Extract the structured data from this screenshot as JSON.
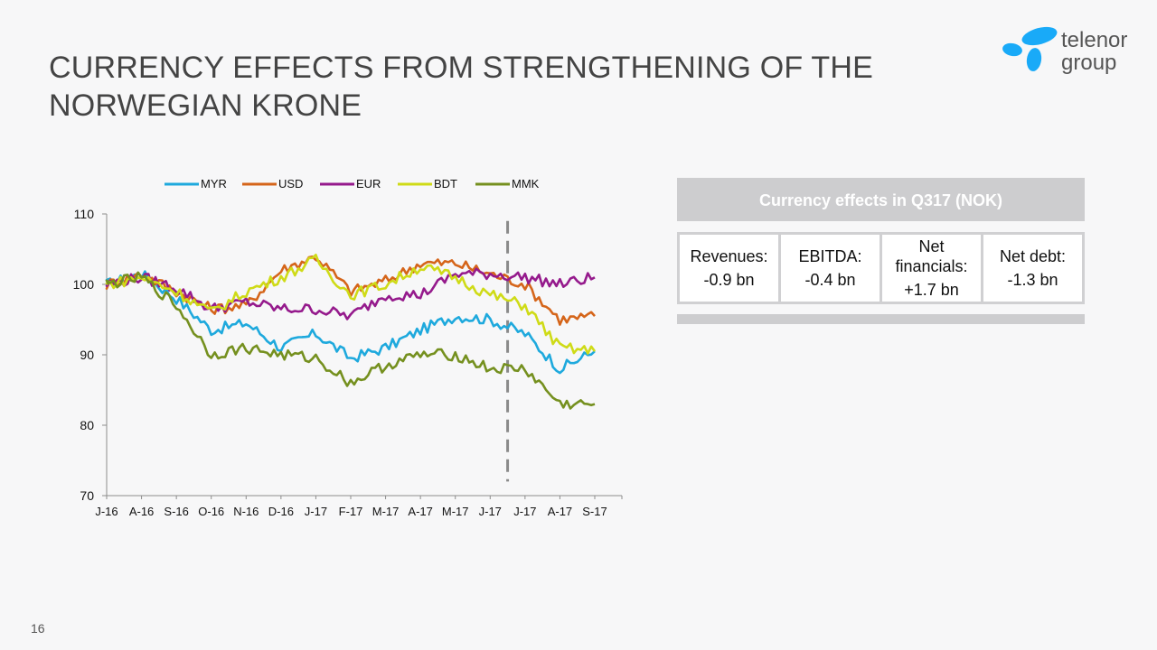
{
  "slide": {
    "title_line1": "CURRENCY EFFECTS FROM STRENGTHENING OF THE",
    "title_line2": "NORWEGIAN KRONE",
    "page_number": "16"
  },
  "logo": {
    "line1": "telenor",
    "line2": "group",
    "color": "#19aaf8"
  },
  "panel": {
    "header": "Currency effects  in Q317 (NOK)",
    "cells": [
      {
        "label": "Revenues:",
        "value": "-0.9 bn"
      },
      {
        "label": "EBITDA:",
        "value": "-0.4 bn"
      },
      {
        "label": "Net financials:",
        "value": "+1.7 bn"
      },
      {
        "label": "Net debt:",
        "value": "-1.3 bn"
      }
    ]
  },
  "chart_data": {
    "type": "line",
    "x": [
      "J-16",
      "A-16",
      "S-16",
      "O-16",
      "N-16",
      "D-16",
      "J-17",
      "F-17",
      "M-17",
      "A-17",
      "M-17",
      "J-17",
      "J-17",
      "A-17",
      "S-17"
    ],
    "ylim": [
      70,
      110
    ],
    "yticks": [
      70,
      80,
      90,
      100,
      110
    ],
    "legend_position": "top",
    "marker": {
      "x_index": 11.5,
      "style": "dashed",
      "color": "#8a8a8a"
    },
    "series": [
      {
        "name": "MYR",
        "color": "#1ea9dd",
        "values": [
          100,
          101.5,
          98,
          93.5,
          94.5,
          91,
          93,
          89.5,
          91,
          93.5,
          95.5,
          95,
          93,
          88,
          90.5
        ]
      },
      {
        "name": "USD",
        "color": "#d5651a",
        "values": [
          100,
          101.5,
          99,
          96.5,
          97,
          102,
          104,
          99,
          100.5,
          103,
          103,
          101.5,
          100,
          95,
          95.5
        ]
      },
      {
        "name": "EUR",
        "color": "#951a8c",
        "values": [
          100,
          101,
          99.5,
          96.5,
          97.5,
          96.5,
          96.5,
          95.5,
          98.5,
          98.5,
          101.5,
          101.5,
          101,
          100,
          101
        ]
      },
      {
        "name": "BDT",
        "color": "#cfdb17",
        "values": [
          100,
          101,
          99,
          96,
          99,
          101,
          103.5,
          98.5,
          100,
          102.5,
          101,
          98.5,
          97,
          91,
          90.5
        ]
      },
      {
        "name": "MMK",
        "color": "#75901f",
        "values": [
          100,
          101,
          97,
          90,
          91,
          90,
          89.5,
          86,
          88.5,
          90,
          90,
          88,
          88,
          83,
          83
        ]
      }
    ]
  }
}
